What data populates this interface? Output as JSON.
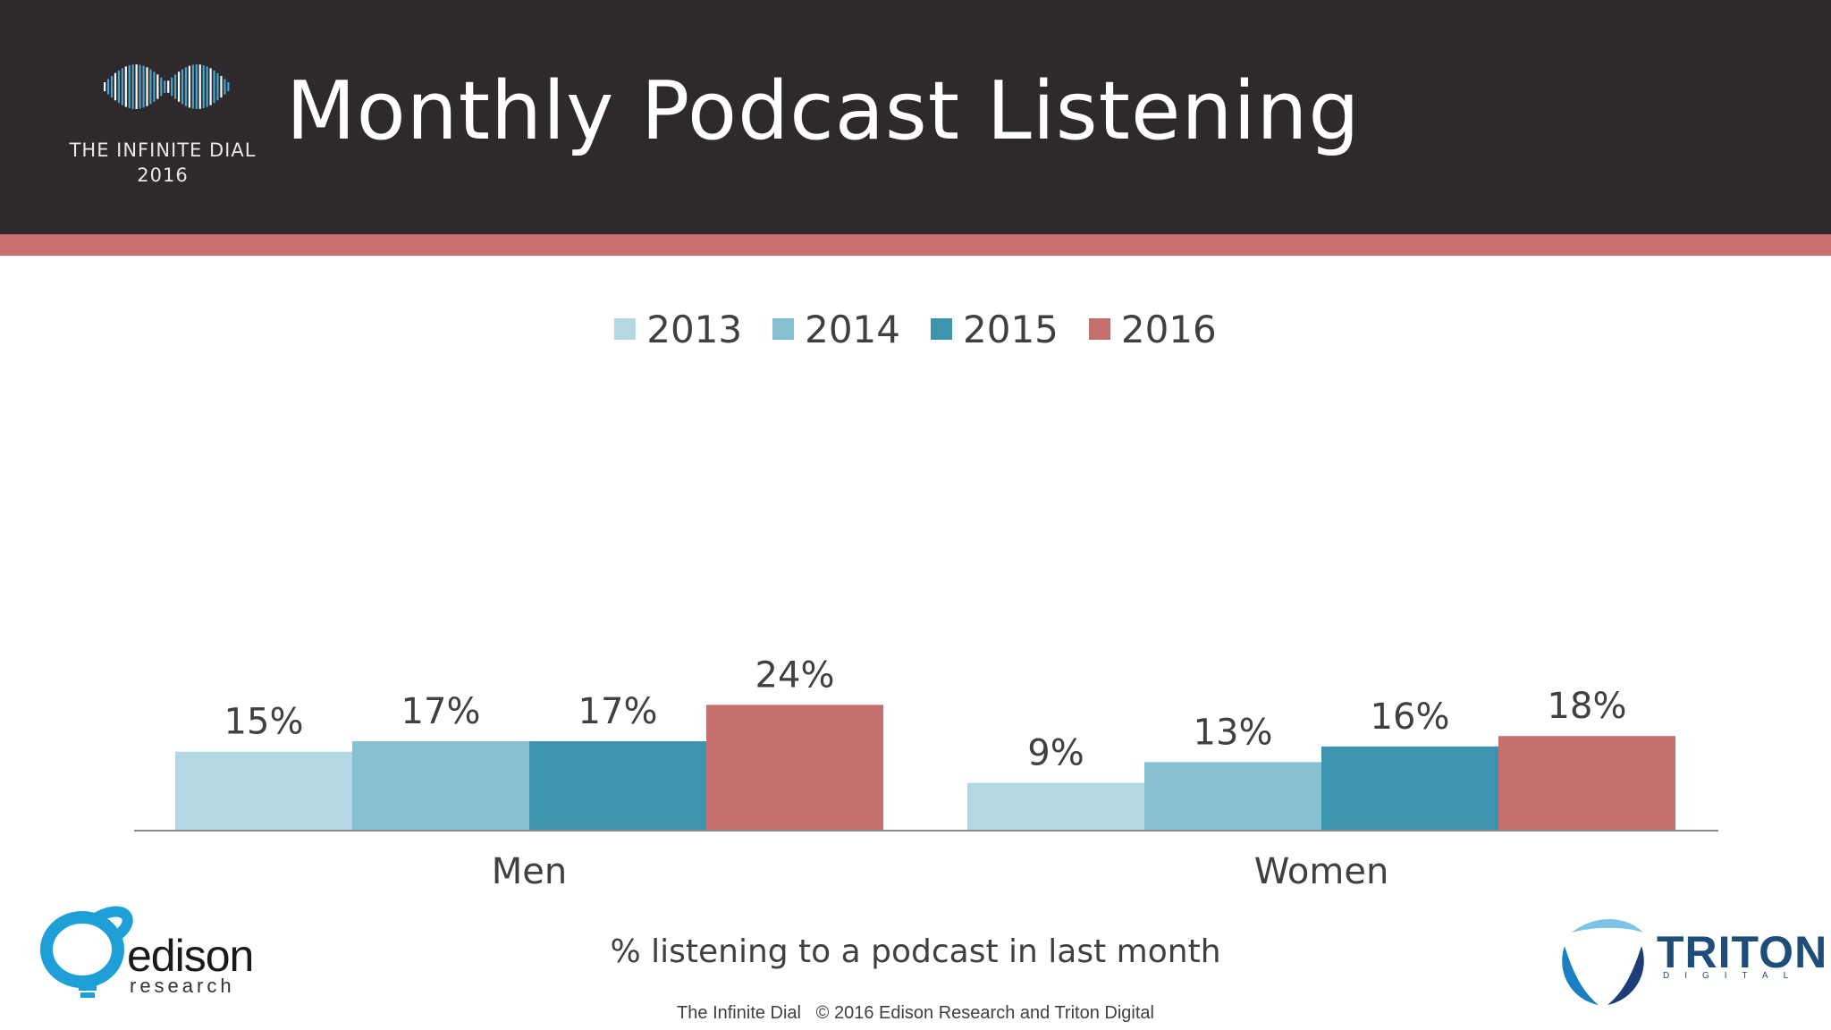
{
  "header": {
    "title": "Monthly Podcast Listening",
    "logo_line1": "THE INFINITE DIAL",
    "logo_line2": "2016"
  },
  "colors": {
    "header_bg": "#2d292d",
    "accent_stripe": "#c9706e"
  },
  "chart_data": {
    "type": "bar",
    "categories": [
      "Men",
      "Women"
    ],
    "series": [
      {
        "name": "2013",
        "values": [
          15,
          9
        ],
        "color": "#b3d8e3"
      },
      {
        "name": "2014",
        "values": [
          17,
          13
        ],
        "color": "#87c0d3"
      },
      {
        "name": "2015",
        "values": [
          17,
          16
        ],
        "color": "#3e93ae"
      },
      {
        "name": "2016",
        "values": [
          24,
          18
        ],
        "color": "#c5706c"
      }
    ],
    "value_suffix": "%",
    "legend": "top-center",
    "ylim": [
      0,
      100
    ],
    "grid": false,
    "title": "",
    "xlabel": "% listening to a podcast in last month",
    "ylabel": ""
  },
  "footer": {
    "text": "The Infinite Dial   © 2016 Edison Research and Triton Digital"
  },
  "logos": {
    "edison_word": "edison",
    "edison_sub": "research",
    "triton_word": "TRITON",
    "triton_sub": "DIGITAL"
  }
}
